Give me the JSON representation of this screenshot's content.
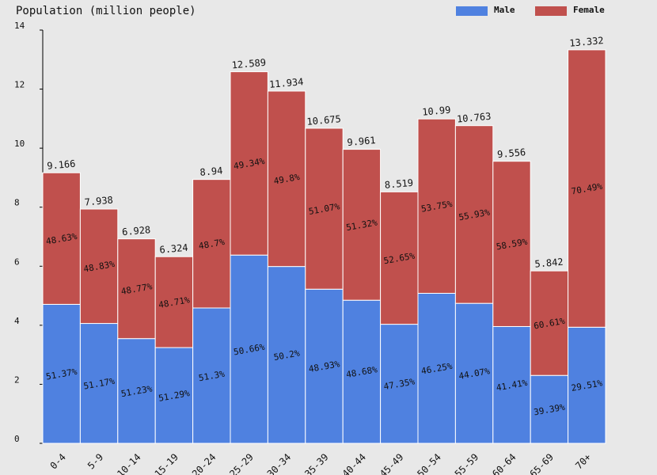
{
  "chart_data": {
    "type": "stacked_bar",
    "title": "Population (million people)",
    "categories": [
      "0-4",
      "5-9",
      "10-14",
      "15-19",
      "20-24",
      "25-29",
      "30-34",
      "35-39",
      "40-44",
      "45-49",
      "50-54",
      "55-59",
      "60-64",
      "65-69",
      "70+"
    ],
    "series": [
      {
        "name": "Male",
        "color": "#4f81e0",
        "values": [
          4.709,
          4.062,
          3.549,
          3.244,
          4.586,
          6.378,
          5.991,
          5.223,
          4.849,
          4.034,
          5.083,
          4.743,
          3.957,
          2.301,
          3.934
        ],
        "percent_labels": [
          "51.37%",
          "51.17%",
          "51.23%",
          "51.29%",
          "51.3%",
          "50.66%",
          "50.2%",
          "48.93%",
          "48.68%",
          "47.35%",
          "46.25%",
          "44.07%",
          "41.41%",
          "39.39%",
          "29.51%"
        ]
      },
      {
        "name": "Female",
        "color": "#c0504d",
        "values": [
          4.457,
          3.876,
          3.379,
          3.08,
          4.354,
          6.211,
          5.943,
          5.452,
          5.112,
          4.485,
          5.907,
          6.02,
          5.599,
          3.541,
          9.398
        ],
        "percent_labels": [
          "48.63%",
          "48.83%",
          "48.77%",
          "48.71%",
          "48.7%",
          "49.34%",
          "49.8%",
          "51.07%",
          "51.32%",
          "52.65%",
          "53.75%",
          "55.93%",
          "58.59%",
          "60.61%",
          "70.49%"
        ]
      }
    ],
    "totals": [
      9.166,
      7.938,
      6.928,
      6.324,
      8.94,
      12.589,
      11.934,
      10.675,
      9.961,
      8.519,
      10.99,
      10.763,
      9.556,
      5.842,
      13.332
    ],
    "ylim": [
      0,
      14
    ],
    "yticks": [
      0,
      2,
      4,
      6,
      8,
      10,
      12,
      14
    ],
    "legend": "top-right"
  }
}
